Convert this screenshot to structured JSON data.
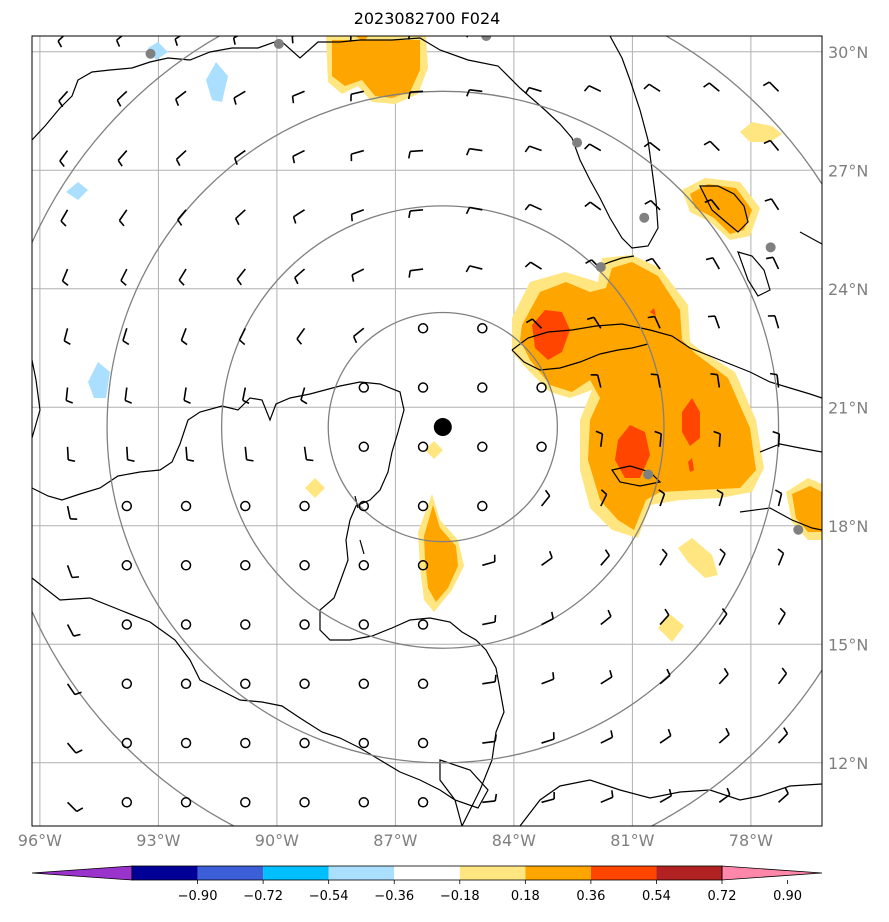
{
  "title": "2023082700 F024",
  "map": {
    "lon_range": [
      -96.2,
      -76.2
    ],
    "lat_range": [
      10.4,
      30.4
    ],
    "lon_ticks": [
      {
        "value": -96,
        "label": "96°W"
      },
      {
        "value": -93,
        "label": "93°W"
      },
      {
        "value": -90,
        "label": "90°W"
      },
      {
        "value": -87,
        "label": "87°W"
      },
      {
        "value": -84,
        "label": "84°W"
      },
      {
        "value": -81,
        "label": "81°W"
      },
      {
        "value": -78,
        "label": "78°W"
      }
    ],
    "lat_ticks": [
      {
        "value": 30,
        "label": "30°N"
      },
      {
        "value": 27,
        "label": "27°N"
      },
      {
        "value": 24,
        "label": "24°N"
      },
      {
        "value": 21,
        "label": "21°N"
      },
      {
        "value": 18,
        "label": "18°N"
      },
      {
        "value": 15,
        "label": "15°N"
      },
      {
        "value": 12,
        "label": "12°N"
      }
    ],
    "grid": true,
    "center": {
      "lon": -85.8,
      "lat": 20.5
    },
    "range_rings_deg": [
      2.9,
      5.6,
      8.5,
      11.4
    ],
    "station_markers": [
      {
        "lon": -93.2,
        "lat": 29.95
      },
      {
        "lon": -89.95,
        "lat": 30.2
      },
      {
        "lon": -84.7,
        "lat": 30.4
      },
      {
        "lon": -82.4,
        "lat": 27.7
      },
      {
        "lon": -80.7,
        "lat": 25.8
      },
      {
        "lon": -81.8,
        "lat": 24.55
      },
      {
        "lon": -77.5,
        "lat": 25.05
      },
      {
        "lon": -80.6,
        "lat": 19.3
      },
      {
        "lon": -76.8,
        "lat": 17.9
      }
    ]
  },
  "colorbar": {
    "colors": [
      "#9933cc",
      "#000099",
      "#3c5fd8",
      "#00bfff",
      "#aadfff",
      "#ffffff",
      "#ffe680",
      "#ffa500",
      "#ff4500",
      "#b22222",
      "#ff88aa"
    ],
    "tick_labels": [
      "−0.90",
      "−0.72",
      "−0.54",
      "−0.36",
      "−0.18",
      "0.18",
      "0.36",
      "0.54",
      "0.72",
      "0.90"
    ]
  }
}
